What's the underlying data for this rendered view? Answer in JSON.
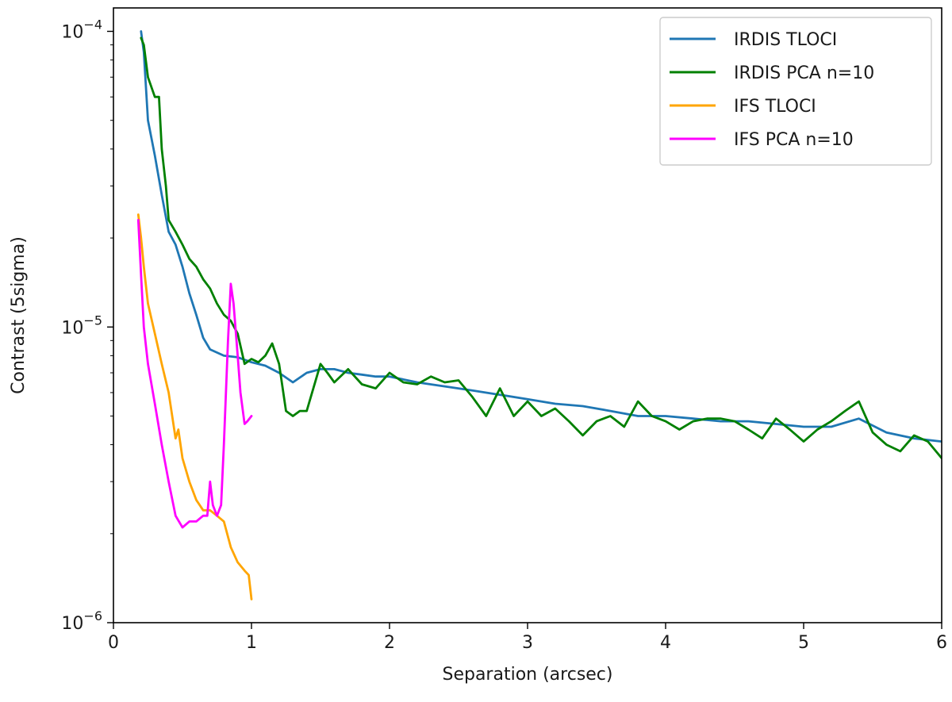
{
  "chart_data": {
    "type": "line",
    "title": "",
    "xlabel": "Separation (arcsec)",
    "ylabel": "Contrast (5sigma)",
    "xlim": [
      0,
      6
    ],
    "ylim": [
      1e-06,
      0.00012
    ],
    "yscale": "log",
    "grid": false,
    "legend_position": "top-right",
    "x_ticks": [
      {
        "value": 0,
        "label": "0"
      },
      {
        "value": 1,
        "label": "1"
      },
      {
        "value": 2,
        "label": "2"
      },
      {
        "value": 3,
        "label": "3"
      },
      {
        "value": 4,
        "label": "4"
      },
      {
        "value": 5,
        "label": "5"
      },
      {
        "value": 6,
        "label": "6"
      }
    ],
    "y_ticks": [
      {
        "value": 0.0001,
        "base": "10",
        "exp": "−4"
      },
      {
        "value": 1e-05,
        "base": "10",
        "exp": "−5"
      },
      {
        "value": 1e-06,
        "base": "10",
        "exp": "−6"
      }
    ],
    "series": [
      {
        "name": "IRDIS TLOCI",
        "color": "#1f77b4",
        "x": [
          0.2,
          0.22,
          0.25,
          0.3,
          0.35,
          0.4,
          0.45,
          0.5,
          0.55,
          0.6,
          0.65,
          0.7,
          0.8,
          0.9,
          1.0,
          1.1,
          1.2,
          1.3,
          1.4,
          1.5,
          1.6,
          1.7,
          1.8,
          1.9,
          2.0,
          2.2,
          2.4,
          2.6,
          2.8,
          3.0,
          3.2,
          3.4,
          3.6,
          3.8,
          4.0,
          4.2,
          4.4,
          4.6,
          4.8,
          5.0,
          5.2,
          5.4,
          5.6,
          5.8,
          6.0
        ],
        "y": [
          0.0001,
          8.5e-05,
          5e-05,
          3.8e-05,
          2.8e-05,
          2.1e-05,
          1.9e-05,
          1.6e-05,
          1.3e-05,
          1.1e-05,
          9.2e-06,
          8.4e-06,
          8e-06,
          7.9e-06,
          7.6e-06,
          7.4e-06,
          7e-06,
          6.5e-06,
          7e-06,
          7.2e-06,
          7.2e-06,
          7e-06,
          6.9e-06,
          6.8e-06,
          6.8e-06,
          6.5e-06,
          6.3e-06,
          6.1e-06,
          5.9e-06,
          5.7e-06,
          5.5e-06,
          5.4e-06,
          5.2e-06,
          5e-06,
          5e-06,
          4.9e-06,
          4.8e-06,
          4.8e-06,
          4.7e-06,
          4.6e-06,
          4.6e-06,
          4.9e-06,
          4.4e-06,
          4.2e-06,
          4.1e-06
        ]
      },
      {
        "name": "IRDIS PCA n=10",
        "color": "#008000",
        "x": [
          0.2,
          0.22,
          0.25,
          0.3,
          0.33,
          0.35,
          0.38,
          0.4,
          0.45,
          0.5,
          0.55,
          0.6,
          0.65,
          0.7,
          0.75,
          0.8,
          0.85,
          0.9,
          0.95,
          1.0,
          1.05,
          1.1,
          1.15,
          1.2,
          1.25,
          1.3,
          1.35,
          1.4,
          1.5,
          1.55,
          1.6,
          1.7,
          1.8,
          1.9,
          2.0,
          2.1,
          2.2,
          2.3,
          2.4,
          2.5,
          2.6,
          2.7,
          2.8,
          2.9,
          3.0,
          3.1,
          3.2,
          3.3,
          3.4,
          3.5,
          3.6,
          3.7,
          3.8,
          3.9,
          4.0,
          4.1,
          4.2,
          4.3,
          4.4,
          4.5,
          4.6,
          4.7,
          4.8,
          4.9,
          5.0,
          5.1,
          5.2,
          5.3,
          5.4,
          5.5,
          5.6,
          5.7,
          5.8,
          5.9,
          6.0
        ],
        "y": [
          9.5e-05,
          9e-05,
          7e-05,
          6e-05,
          6e-05,
          4e-05,
          3e-05,
          2.3e-05,
          2.1e-05,
          1.9e-05,
          1.7e-05,
          1.6e-05,
          1.45e-05,
          1.35e-05,
          1.2e-05,
          1.1e-05,
          1.05e-05,
          9.5e-06,
          7.5e-06,
          7.8e-06,
          7.6e-06,
          8e-06,
          8.8e-06,
          7.5e-06,
          5.2e-06,
          5e-06,
          5.2e-06,
          5.2e-06,
          7.5e-06,
          7e-06,
          6.5e-06,
          7.2e-06,
          6.4e-06,
          6.2e-06,
          7e-06,
          6.5e-06,
          6.4e-06,
          6.8e-06,
          6.5e-06,
          6.6e-06,
          5.8e-06,
          5e-06,
          6.2e-06,
          5e-06,
          5.6e-06,
          5e-06,
          5.3e-06,
          4.8e-06,
          4.3e-06,
          4.8e-06,
          5e-06,
          4.6e-06,
          5.6e-06,
          5e-06,
          4.8e-06,
          4.5e-06,
          4.8e-06,
          4.9e-06,
          4.9e-06,
          4.8e-06,
          4.5e-06,
          4.2e-06,
          4.9e-06,
          4.5e-06,
          4.1e-06,
          4.5e-06,
          4.8e-06,
          5.2e-06,
          5.6e-06,
          4.4e-06,
          4e-06,
          3.8e-06,
          4.3e-06,
          4.1e-06,
          3.6e-06
        ]
      },
      {
        "name": "IFS TLOCI",
        "color": "#ffa500",
        "x": [
          0.18,
          0.2,
          0.22,
          0.25,
          0.3,
          0.35,
          0.4,
          0.45,
          0.47,
          0.5,
          0.55,
          0.6,
          0.65,
          0.7,
          0.75,
          0.8,
          0.85,
          0.9,
          0.95,
          0.98,
          1.0
        ],
        "y": [
          2.4e-05,
          2e-05,
          1.6e-05,
          1.2e-05,
          9.5e-06,
          7.5e-06,
          6e-06,
          4.2e-06,
          4.5e-06,
          3.6e-06,
          3e-06,
          2.6e-06,
          2.4e-06,
          2.4e-06,
          2.3e-06,
          2.2e-06,
          1.8e-06,
          1.6e-06,
          1.5e-06,
          1.45e-06,
          1.2e-06
        ]
      },
      {
        "name": "IFS PCA n=10",
        "color": "#ff00ff",
        "x": [
          0.18,
          0.2,
          0.22,
          0.25,
          0.3,
          0.35,
          0.4,
          0.45,
          0.5,
          0.55,
          0.6,
          0.65,
          0.68,
          0.7,
          0.72,
          0.75,
          0.78,
          0.8,
          0.83,
          0.85,
          0.87,
          0.9,
          0.92,
          0.95,
          0.97,
          1.0
        ],
        "y": [
          2.3e-05,
          1.5e-05,
          1e-05,
          7.5e-06,
          5.5e-06,
          4e-06,
          3e-06,
          2.3e-06,
          2.1e-06,
          2.2e-06,
          2.2e-06,
          2.3e-06,
          2.3e-06,
          3e-06,
          2.5e-06,
          2.3e-06,
          2.5e-06,
          4e-06,
          9e-06,
          1.4e-05,
          1.2e-05,
          8e-06,
          6e-06,
          4.7e-06,
          4.8e-06,
          5e-06
        ]
      }
    ]
  }
}
